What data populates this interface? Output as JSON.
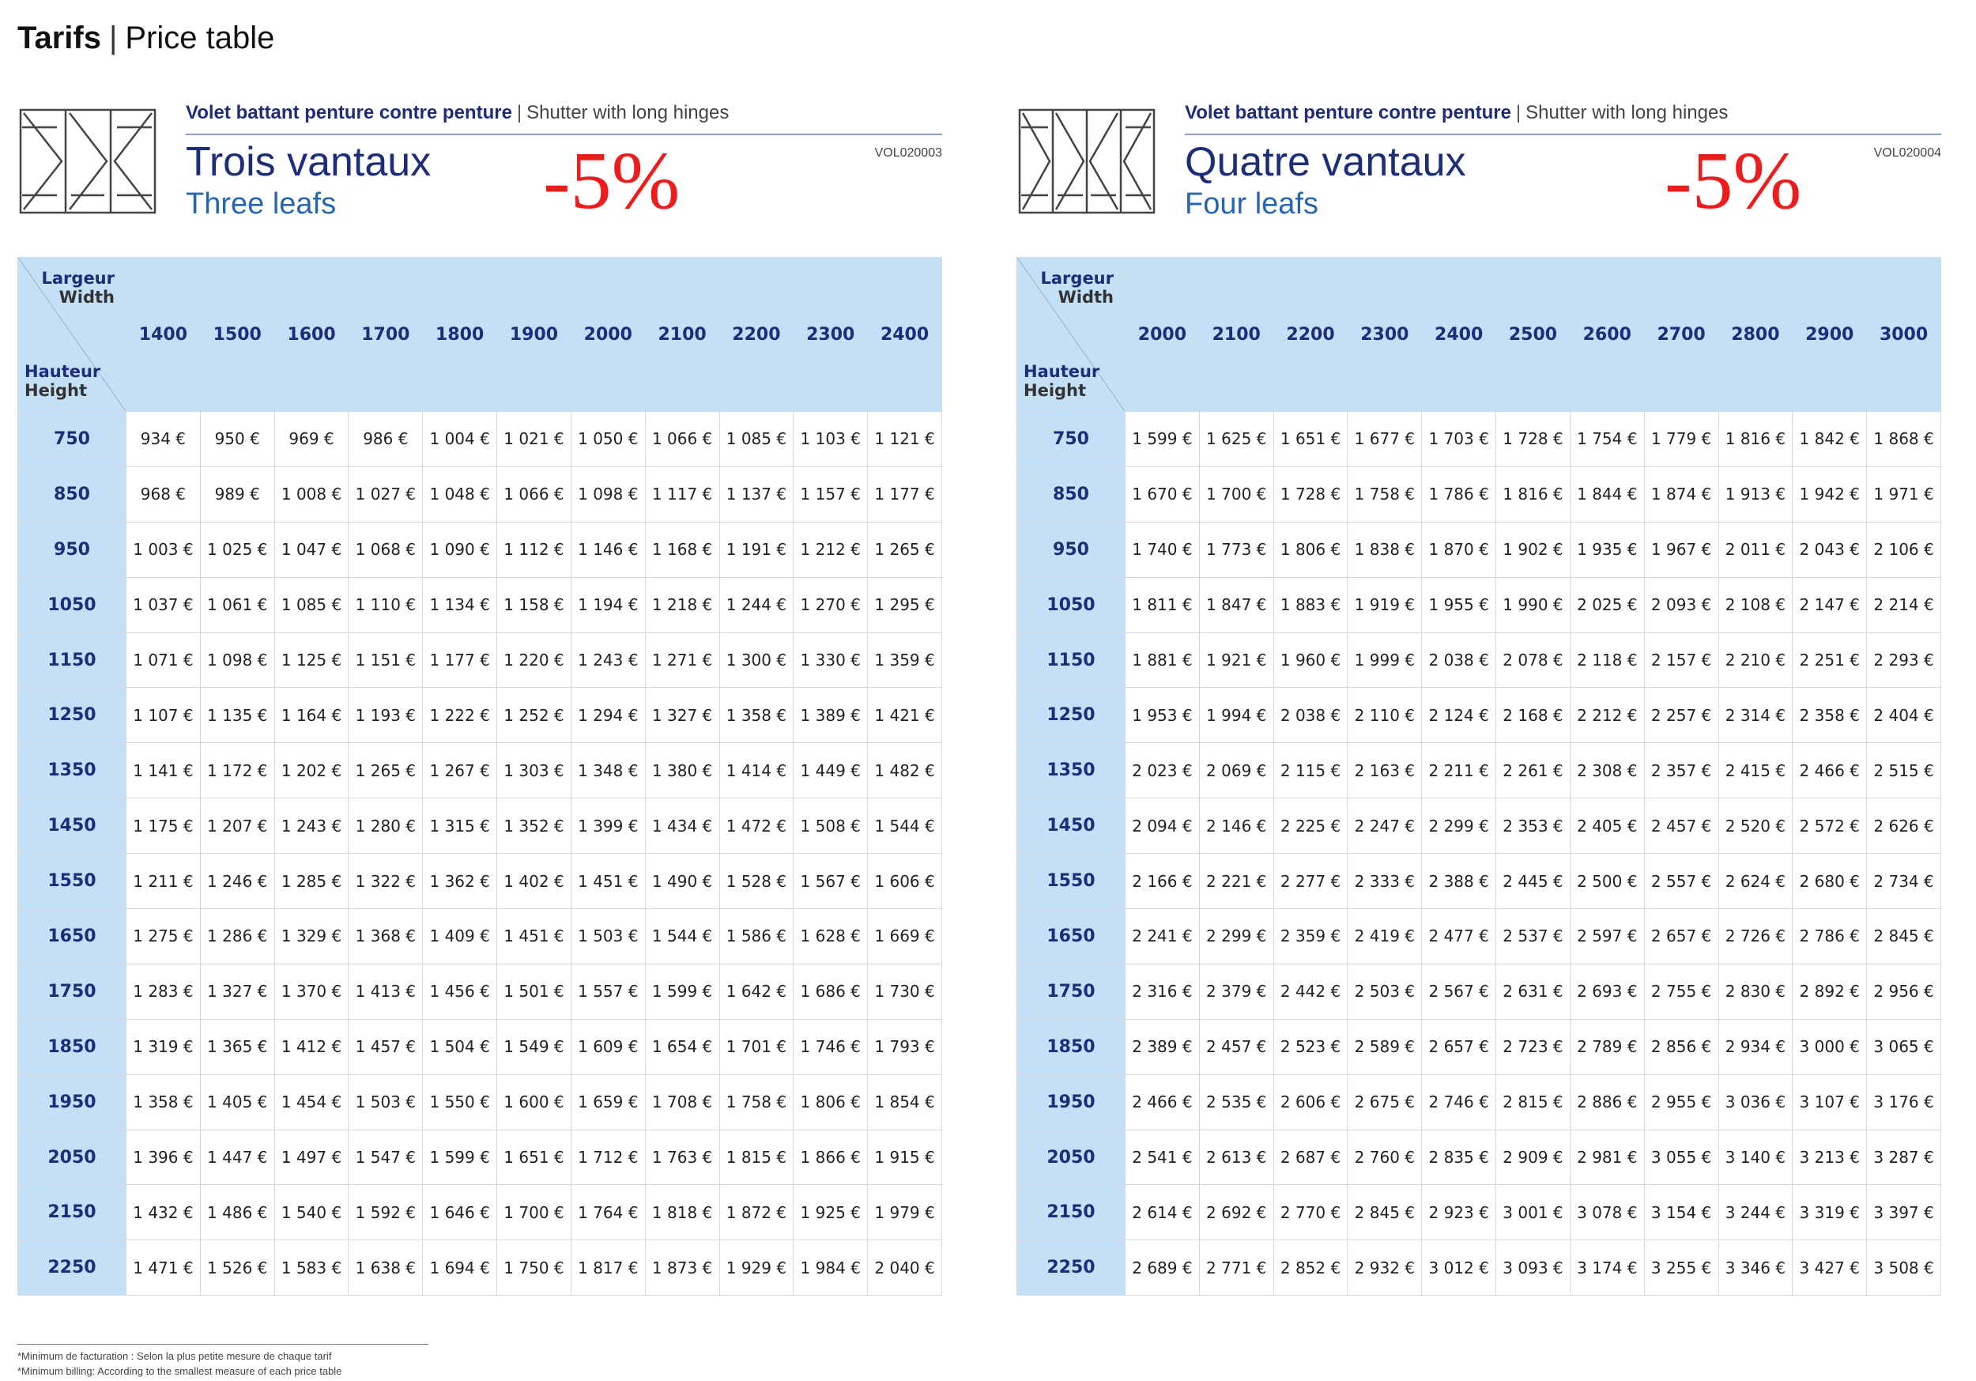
{
  "page": {
    "title_strong": "Tarifs",
    "title_sep": "|",
    "title_rest": "Price table"
  },
  "panels": [
    {
      "subtitle_fr": "Volet battant penture contre penture",
      "subtitle_sep": "|",
      "subtitle_en": "Shutter with long hinges",
      "title_fr": "Trois vantaux",
      "title_en": "Three leafs",
      "discount": "-5%",
      "ref": "VOL020003",
      "corner": {
        "width_fr": "Largeur",
        "width_en": "Width",
        "height_fr": "Hauteur",
        "height_en": "Height"
      },
      "widths": [
        "1400",
        "1500",
        "1600",
        "1700",
        "1800",
        "1900",
        "2000",
        "2100",
        "2200",
        "2300",
        "2400"
      ],
      "rows": [
        {
          "h": "750",
          "p": [
            "934 €",
            "950 €",
            "969 €",
            "986 €",
            "1 004 €",
            "1 021 €",
            "1 050 €",
            "1 066 €",
            "1 085 €",
            "1 103 €",
            "1 121 €"
          ]
        },
        {
          "h": "850",
          "p": [
            "968 €",
            "989 €",
            "1 008 €",
            "1 027 €",
            "1 048 €",
            "1 066 €",
            "1 098 €",
            "1 117 €",
            "1 137 €",
            "1 157 €",
            "1 177 €"
          ]
        },
        {
          "h": "950",
          "p": [
            "1 003 €",
            "1 025 €",
            "1 047 €",
            "1 068 €",
            "1 090 €",
            "1 112 €",
            "1 146 €",
            "1 168 €",
            "1 191 €",
            "1 212 €",
            "1 265 €"
          ]
        },
        {
          "h": "1050",
          "p": [
            "1 037 €",
            "1 061 €",
            "1 085 €",
            "1 110 €",
            "1 134 €",
            "1 158 €",
            "1 194 €",
            "1 218 €",
            "1 244 €",
            "1 270 €",
            "1 295 €"
          ]
        },
        {
          "h": "1150",
          "p": [
            "1 071 €",
            "1 098 €",
            "1 125 €",
            "1 151 €",
            "1 177 €",
            "1 220 €",
            "1 243 €",
            "1 271 €",
            "1 300 €",
            "1 330 €",
            "1 359 €"
          ]
        },
        {
          "h": "1250",
          "p": [
            "1 107 €",
            "1 135 €",
            "1 164 €",
            "1 193 €",
            "1 222 €",
            "1 252 €",
            "1 294 €",
            "1 327 €",
            "1 358 €",
            "1 389 €",
            "1 421 €"
          ]
        },
        {
          "h": "1350",
          "p": [
            "1 141 €",
            "1 172 €",
            "1 202 €",
            "1 265 €",
            "1 267 €",
            "1 303 €",
            "1 348 €",
            "1 380 €",
            "1 414 €",
            "1 449 €",
            "1 482 €"
          ]
        },
        {
          "h": "1450",
          "p": [
            "1 175 €",
            "1 207 €",
            "1 243 €",
            "1 280 €",
            "1 315 €",
            "1 352 €",
            "1 399 €",
            "1 434 €",
            "1 472 €",
            "1 508 €",
            "1 544 €"
          ]
        },
        {
          "h": "1550",
          "p": [
            "1 211 €",
            "1 246 €",
            "1 285 €",
            "1 322 €",
            "1 362 €",
            "1 402 €",
            "1 451 €",
            "1 490 €",
            "1 528 €",
            "1 567 €",
            "1 606 €"
          ]
        },
        {
          "h": "1650",
          "p": [
            "1 275 €",
            "1 286 €",
            "1 329 €",
            "1 368 €",
            "1 409 €",
            "1 451 €",
            "1 503 €",
            "1 544 €",
            "1 586 €",
            "1 628 €",
            "1 669 €"
          ]
        },
        {
          "h": "1750",
          "p": [
            "1 283 €",
            "1 327 €",
            "1 370 €",
            "1 413 €",
            "1 456 €",
            "1 501 €",
            "1 557 €",
            "1 599 €",
            "1 642 €",
            "1 686 €",
            "1 730 €"
          ]
        },
        {
          "h": "1850",
          "p": [
            "1 319 €",
            "1 365 €",
            "1 412 €",
            "1 457 €",
            "1 504 €",
            "1 549 €",
            "1 609 €",
            "1 654 €",
            "1 701 €",
            "1 746 €",
            "1 793 €"
          ]
        },
        {
          "h": "1950",
          "p": [
            "1 358 €",
            "1 405 €",
            "1 454 €",
            "1 503 €",
            "1 550 €",
            "1 600 €",
            "1 659 €",
            "1 708 €",
            "1 758 €",
            "1 806 €",
            "1 854 €"
          ]
        },
        {
          "h": "2050",
          "p": [
            "1 396 €",
            "1 447 €",
            "1 497 €",
            "1 547 €",
            "1 599 €",
            "1 651 €",
            "1 712 €",
            "1 763 €",
            "1 815 €",
            "1 866 €",
            "1 915 €"
          ]
        },
        {
          "h": "2150",
          "p": [
            "1 432 €",
            "1 486 €",
            "1 540 €",
            "1 592 €",
            "1 646 €",
            "1 700 €",
            "1 764 €",
            "1 818 €",
            "1 872 €",
            "1 925 €",
            "1 979 €"
          ]
        },
        {
          "h": "2250",
          "p": [
            "1 471 €",
            "1 526 €",
            "1 583 €",
            "1 638 €",
            "1 694 €",
            "1 750 €",
            "1 817 €",
            "1 873 €",
            "1 929 €",
            "1 984 €",
            "2 040 €"
          ]
        }
      ]
    },
    {
      "subtitle_fr": "Volet battant penture contre penture",
      "subtitle_sep": "|",
      "subtitle_en": "Shutter with long hinges",
      "title_fr": "Quatre vantaux",
      "title_en": "Four leafs",
      "discount": "-5%",
      "ref": "VOL020004",
      "corner": {
        "width_fr": "Largeur",
        "width_en": "Width",
        "height_fr": "Hauteur",
        "height_en": "Height"
      },
      "widths": [
        "2000",
        "2100",
        "2200",
        "2300",
        "2400",
        "2500",
        "2600",
        "2700",
        "2800",
        "2900",
        "3000"
      ],
      "rows": [
        {
          "h": "750",
          "p": [
            "1 599 €",
            "1 625 €",
            "1 651 €",
            "1 677 €",
            "1 703 €",
            "1 728 €",
            "1 754 €",
            "1 779 €",
            "1 816 €",
            "1 842 €",
            "1 868 €"
          ]
        },
        {
          "h": "850",
          "p": [
            "1 670 €",
            "1 700 €",
            "1 728 €",
            "1 758 €",
            "1 786 €",
            "1 816 €",
            "1 844 €",
            "1 874 €",
            "1 913 €",
            "1 942 €",
            "1 971 €"
          ]
        },
        {
          "h": "950",
          "p": [
            "1 740 €",
            "1 773 €",
            "1 806 €",
            "1 838 €",
            "1 870 €",
            "1 902 €",
            "1 935 €",
            "1 967 €",
            "2 011 €",
            "2 043 €",
            "2 106 €"
          ]
        },
        {
          "h": "1050",
          "p": [
            "1 811 €",
            "1 847 €",
            "1 883 €",
            "1 919 €",
            "1 955 €",
            "1 990 €",
            "2 025 €",
            "2 093 €",
            "2 108 €",
            "2 147 €",
            "2 214 €"
          ]
        },
        {
          "h": "1150",
          "p": [
            "1 881 €",
            "1 921 €",
            "1 960 €",
            "1 999 €",
            "2 038 €",
            "2 078 €",
            "2 118 €",
            "2 157 €",
            "2 210 €",
            "2 251 €",
            "2 293 €"
          ]
        },
        {
          "h": "1250",
          "p": [
            "1 953 €",
            "1 994 €",
            "2 038 €",
            "2 110 €",
            "2 124 €",
            "2 168 €",
            "2 212 €",
            "2 257 €",
            "2 314 €",
            "2 358 €",
            "2 404 €"
          ]
        },
        {
          "h": "1350",
          "p": [
            "2 023 €",
            "2 069 €",
            "2 115 €",
            "2 163 €",
            "2 211 €",
            "2 261 €",
            "2 308 €",
            "2 357 €",
            "2 415 €",
            "2 466 €",
            "2 515 €"
          ]
        },
        {
          "h": "1450",
          "p": [
            "2 094 €",
            "2 146 €",
            "2 225 €",
            "2 247 €",
            "2 299 €",
            "2 353 €",
            "2 405 €",
            "2 457 €",
            "2 520 €",
            "2 572 €",
            "2 626 €"
          ]
        },
        {
          "h": "1550",
          "p": [
            "2 166 €",
            "2 221 €",
            "2 277 €",
            "2 333 €",
            "2 388 €",
            "2 445 €",
            "2 500 €",
            "2 557 €",
            "2 624 €",
            "2 680 €",
            "2 734 €"
          ]
        },
        {
          "h": "1650",
          "p": [
            "2 241 €",
            "2 299 €",
            "2 359 €",
            "2 419 €",
            "2 477 €",
            "2 537 €",
            "2 597 €",
            "2 657 €",
            "2 726 €",
            "2 786 €",
            "2 845 €"
          ]
        },
        {
          "h": "1750",
          "p": [
            "2 316 €",
            "2 379 €",
            "2 442 €",
            "2 503 €",
            "2 567 €",
            "2 631 €",
            "2 693 €",
            "2 755 €",
            "2 830 €",
            "2 892 €",
            "2 956 €"
          ]
        },
        {
          "h": "1850",
          "p": [
            "2 389 €",
            "2 457 €",
            "2 523 €",
            "2 589 €",
            "2 657 €",
            "2 723 €",
            "2 789 €",
            "2 856 €",
            "2 934 €",
            "3 000 €",
            "3 065 €"
          ]
        },
        {
          "h": "1950",
          "p": [
            "2 466 €",
            "2 535 €",
            "2 606 €",
            "2 675 €",
            "2 746 €",
            "2 815 €",
            "2 886 €",
            "2 955 €",
            "3 036 €",
            "3 107 €",
            "3 176 €"
          ]
        },
        {
          "h": "2050",
          "p": [
            "2 541 €",
            "2 613 €",
            "2 687 €",
            "2 760 €",
            "2 835 €",
            "2 909 €",
            "2 981 €",
            "3 055 €",
            "3 140 €",
            "3 213 €",
            "3 287 €"
          ]
        },
        {
          "h": "2150",
          "p": [
            "2 614 €",
            "2 692 €",
            "2 770 €",
            "2 845 €",
            "2 923 €",
            "3 001 €",
            "3 078 €",
            "3 154 €",
            "3 244 €",
            "3 319 €",
            "3 397 €"
          ]
        },
        {
          "h": "2250",
          "p": [
            "2 689 €",
            "2 771 €",
            "2 852 €",
            "2 932 €",
            "3 012 €",
            "3 093 €",
            "3 174 €",
            "3 255 €",
            "3 346 €",
            "3 427 €",
            "3 508 €"
          ]
        }
      ]
    }
  ],
  "footnote": {
    "line1": "*Minimum de facturation : Selon la plus petite mesure de chaque tarif",
    "line2": "*Minimum billing: According to the smallest measure of each price table"
  }
}
